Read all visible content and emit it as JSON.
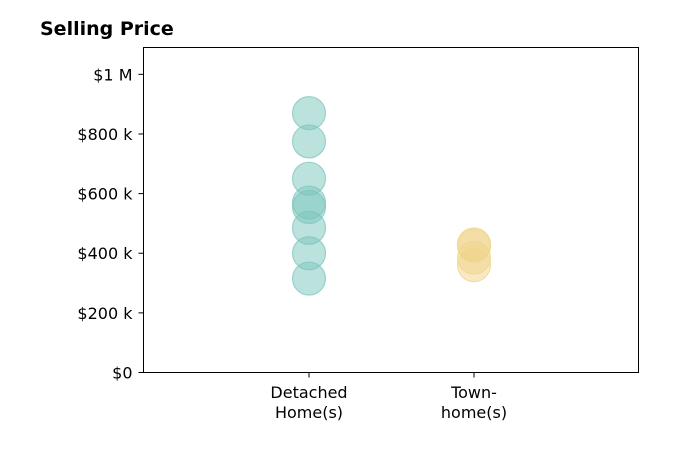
{
  "chart_data": {
    "type": "scatter",
    "title": "Selling Price",
    "xlabel": "",
    "ylabel": "",
    "ylim": [
      0,
      1090000
    ],
    "yticks": [
      {
        "value": 0,
        "label": "$0"
      },
      {
        "value": 200000,
        "label": "$200 k"
      },
      {
        "value": 400000,
        "label": "$400 k"
      },
      {
        "value": 600000,
        "label": "$600 k"
      },
      {
        "value": 800000,
        "label": "$800 k"
      },
      {
        "value": 1000000,
        "label": "$1 M"
      }
    ],
    "categories": [
      {
        "label_lines": [
          "Detached",
          "Home(s)"
        ]
      },
      {
        "label_lines": [
          "Town-",
          "home(s)"
        ]
      }
    ],
    "grid": false,
    "series": [
      {
        "category_index": 0,
        "color": "#7ac5bc",
        "values": [
          870000,
          775000,
          650000,
          570000,
          555000,
          485000,
          400000,
          315000
        ]
      },
      {
        "category_index": 1,
        "color": "#f0d48a",
        "values": [
          430000,
          425000,
          385000,
          360000
        ]
      }
    ]
  }
}
